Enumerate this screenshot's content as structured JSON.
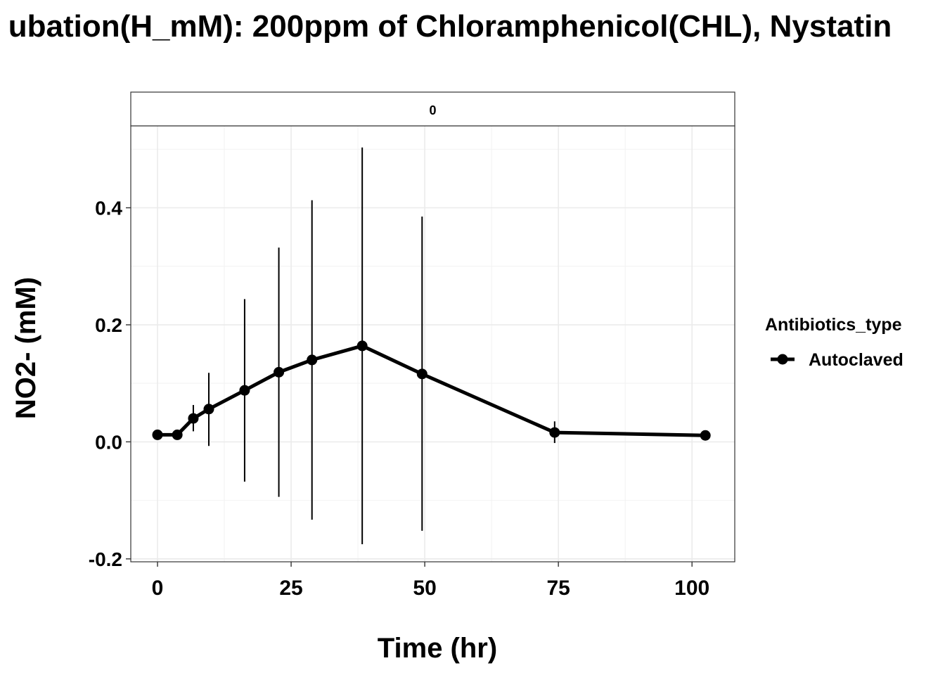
{
  "chart_data": {
    "type": "line",
    "title": "ubation(H_mM): 200ppm of Chloramphenicol(CHL), Nystatin",
    "facet_label": "0",
    "xlabel": "Time (hr)",
    "ylabel": "NO2- (mM)",
    "xlim": [
      -5,
      108
    ],
    "ylim": [
      -0.205,
      0.54
    ],
    "x_ticks": [
      0,
      25,
      50,
      75,
      100
    ],
    "x_tick_labels": [
      "0",
      "25",
      "50",
      "75",
      "100"
    ],
    "y_ticks": [
      -0.2,
      0.0,
      0.2,
      0.4
    ],
    "y_tick_labels": [
      "-0.2",
      "0.0",
      "0.2",
      "0.4"
    ],
    "grid": true,
    "legend": {
      "title": "Antibiotics_type",
      "position": "right",
      "entries": [
        "Autoclaved"
      ]
    },
    "series": [
      {
        "name": "Autoclaved",
        "color": "#000000",
        "points": [
          {
            "x": 0,
            "y": 0.012,
            "ymin": 0.012,
            "ymax": 0.012
          },
          {
            "x": 3.7,
            "y": 0.012,
            "ymin": 0.012,
            "ymax": 0.012
          },
          {
            "x": 6.7,
            "y": 0.04,
            "ymin": 0.018,
            "ymax": 0.063
          },
          {
            "x": 9.6,
            "y": 0.056,
            "ymin": -0.007,
            "ymax": 0.118
          },
          {
            "x": 16.3,
            "y": 0.088,
            "ymin": -0.068,
            "ymax": 0.244
          },
          {
            "x": 22.7,
            "y": 0.119,
            "ymin": -0.094,
            "ymax": 0.332
          },
          {
            "x": 28.9,
            "y": 0.14,
            "ymin": -0.133,
            "ymax": 0.413
          },
          {
            "x": 38.3,
            "y": 0.164,
            "ymin": -0.175,
            "ymax": 0.503
          },
          {
            "x": 49.5,
            "y": 0.116,
            "ymin": -0.152,
            "ymax": 0.385
          },
          {
            "x": 74.3,
            "y": 0.016,
            "ymin": -0.002,
            "ymax": 0.035
          },
          {
            "x": 102.5,
            "y": 0.011,
            "ymin": 0.011,
            "ymax": 0.011
          }
        ]
      }
    ]
  }
}
